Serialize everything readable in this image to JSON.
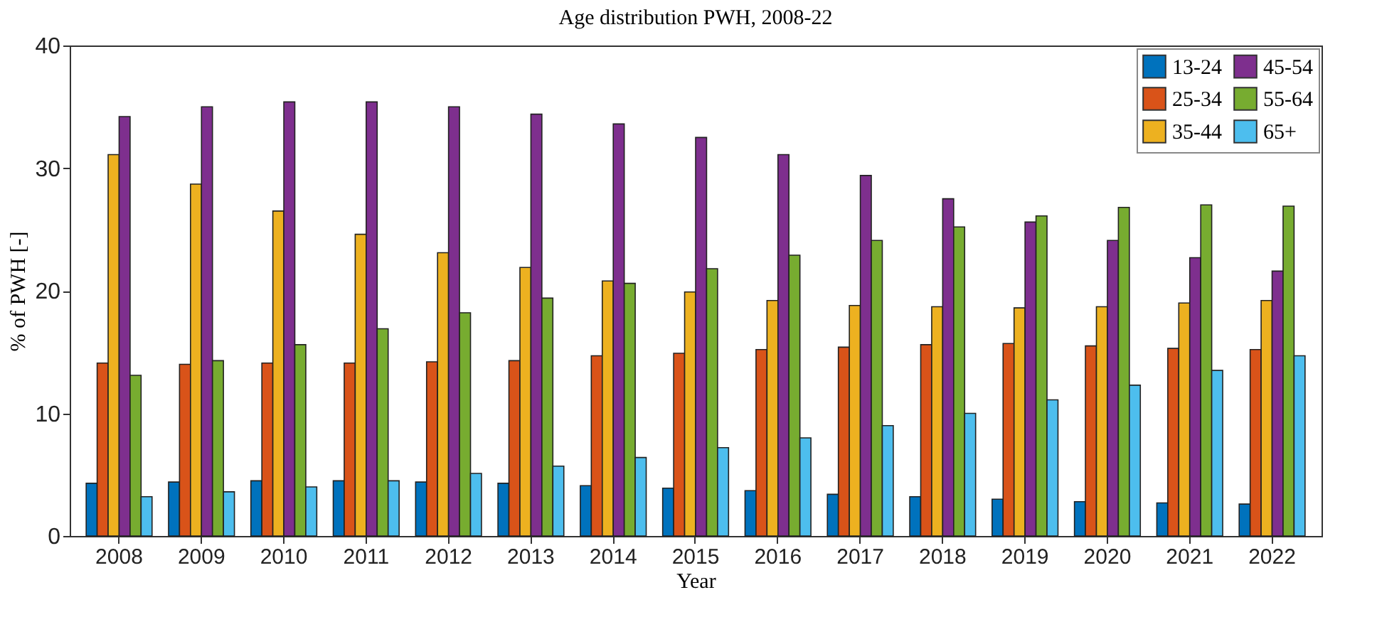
{
  "chart_data": {
    "type": "bar",
    "title": "Age distribution PWH, 2008-22",
    "xlabel": "Year",
    "ylabel": "% of PWH [-]",
    "categories": [
      "2008",
      "2009",
      "2010",
      "2011",
      "2012",
      "2013",
      "2014",
      "2015",
      "2016",
      "2017",
      "2018",
      "2019",
      "2020",
      "2021",
      "2022"
    ],
    "series": [
      {
        "name": "13-24",
        "color": "#0072bd",
        "values": [
          4.3,
          4.4,
          4.5,
          4.5,
          4.4,
          4.3,
          4.1,
          3.9,
          3.7,
          3.4,
          3.2,
          3.0,
          2.8,
          2.7,
          2.6
        ]
      },
      {
        "name": "25-34",
        "color": "#d95319",
        "values": [
          14.1,
          14.0,
          14.1,
          14.1,
          14.2,
          14.3,
          14.7,
          14.9,
          15.2,
          15.4,
          15.6,
          15.7,
          15.5,
          15.3,
          15.2
        ]
      },
      {
        "name": "35-44",
        "color": "#edb120",
        "values": [
          31.1,
          28.7,
          26.5,
          24.6,
          23.1,
          21.9,
          20.8,
          19.9,
          19.2,
          18.8,
          18.7,
          18.6,
          18.7,
          19.0,
          19.2
        ]
      },
      {
        "name": "45-54",
        "color": "#7e2f8e",
        "values": [
          34.2,
          35.0,
          35.4,
          35.4,
          35.0,
          34.4,
          33.6,
          32.5,
          31.1,
          29.4,
          27.5,
          25.6,
          24.1,
          22.7,
          21.6
        ]
      },
      {
        "name": "55-64",
        "color": "#77ac30",
        "values": [
          13.1,
          14.3,
          15.6,
          16.9,
          18.2,
          19.4,
          20.6,
          21.8,
          22.9,
          24.1,
          25.2,
          26.1,
          26.8,
          27.0,
          26.9
        ]
      },
      {
        "name": "65+",
        "color": "#4dbeee",
        "values": [
          3.2,
          3.6,
          4.0,
          4.5,
          5.1,
          5.7,
          6.4,
          7.2,
          8.0,
          9.0,
          10.0,
          11.1,
          12.3,
          13.5,
          14.7
        ]
      }
    ],
    "ylim": [
      0,
      40
    ],
    "yticks": [
      0,
      10,
      20,
      30,
      40
    ],
    "grid": false,
    "legend": "top right"
  }
}
